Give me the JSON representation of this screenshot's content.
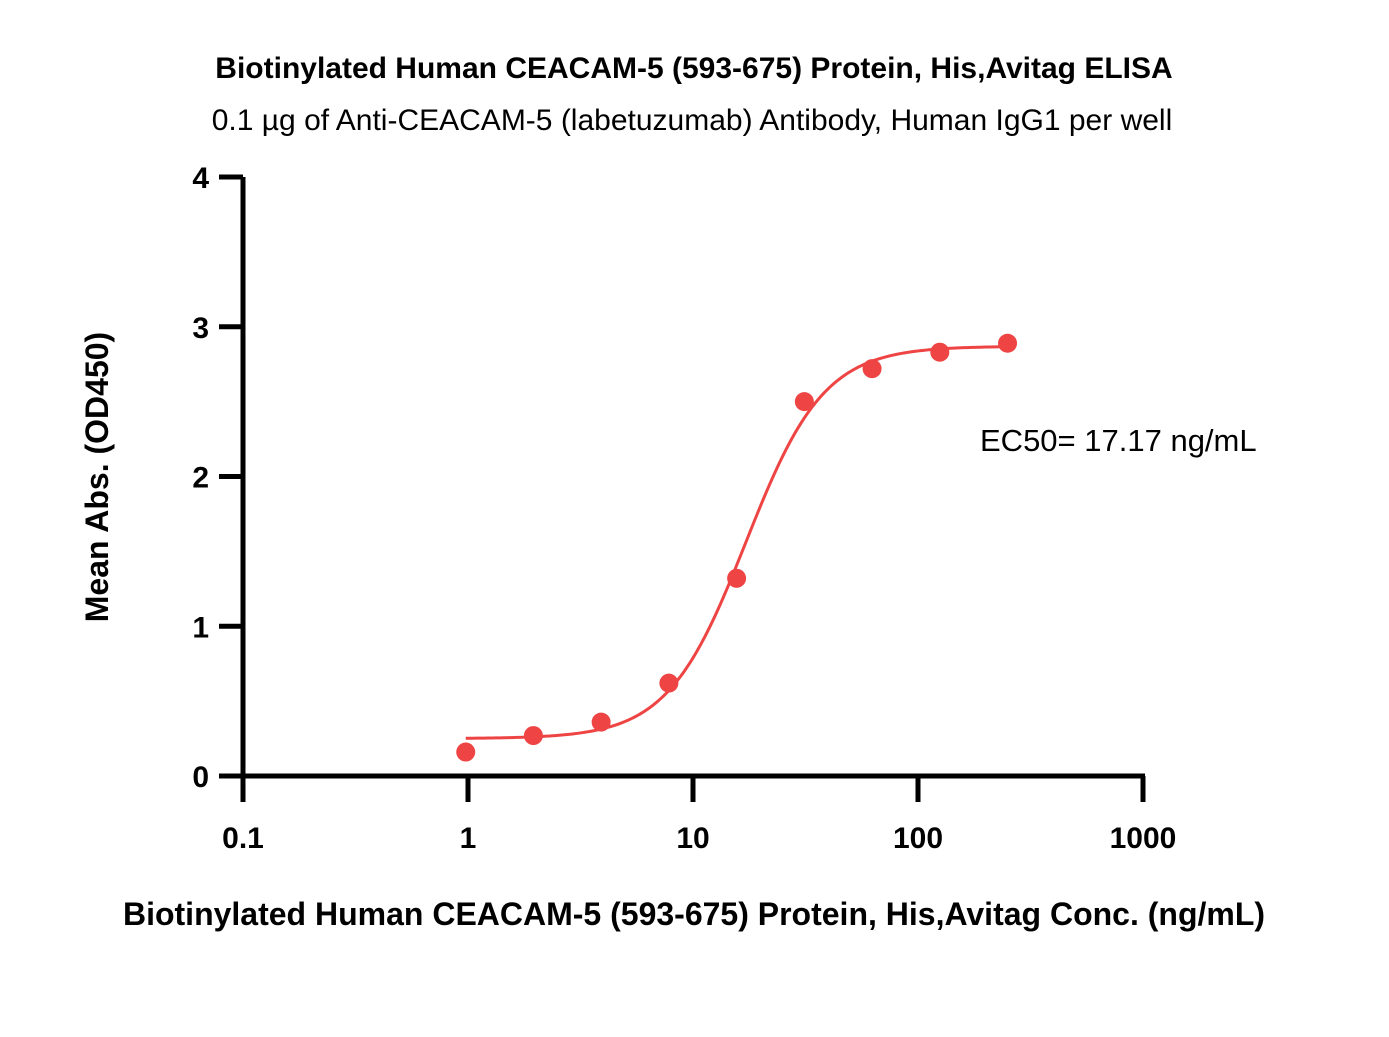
{
  "chart_data": {
    "type": "scatter",
    "title": "Biotinylated Human CEACAM-5 (593-675) Protein, His,Avitag ELISA",
    "subtitle": "0.1 µg of Anti-CEACAM-5 (labetuzumab) Antibody, Human IgG1 per well",
    "xlabel": "Biotinylated Human CEACAM-5 (593-675) Protein, His,Avitag Conc. (ng/mL)",
    "ylabel": "Mean Abs. (OD450)",
    "x_scale": "log",
    "xlim": [
      0.1,
      1000
    ],
    "ylim": [
      0,
      4
    ],
    "x_ticks": [
      0.1,
      1,
      10,
      100,
      1000
    ],
    "x_tick_labels": [
      "0.1",
      "1",
      "10",
      "100",
      "1000"
    ],
    "y_ticks": [
      0,
      1,
      2,
      3,
      4
    ],
    "y_tick_labels": [
      "0",
      "1",
      "2",
      "3",
      "4"
    ],
    "grid": false,
    "series": [
      {
        "color": "#EE4444",
        "x": [
          0.977,
          1.953,
          3.906,
          7.813,
          15.625,
          31.25,
          62.5,
          125,
          250
        ],
        "y": [
          0.16,
          0.27,
          0.36,
          0.62,
          1.32,
          2.5,
          2.72,
          2.83,
          2.89
        ]
      }
    ],
    "fit_curve": {
      "model": "4PL",
      "bottom": 0.25,
      "top": 2.87,
      "ec50": 17.17,
      "hill": 2.5,
      "x_range": [
        0.977,
        250
      ],
      "color": "#EE4444"
    },
    "annotations": [
      {
        "text": "EC50= 17.17 ng/mL"
      }
    ]
  }
}
